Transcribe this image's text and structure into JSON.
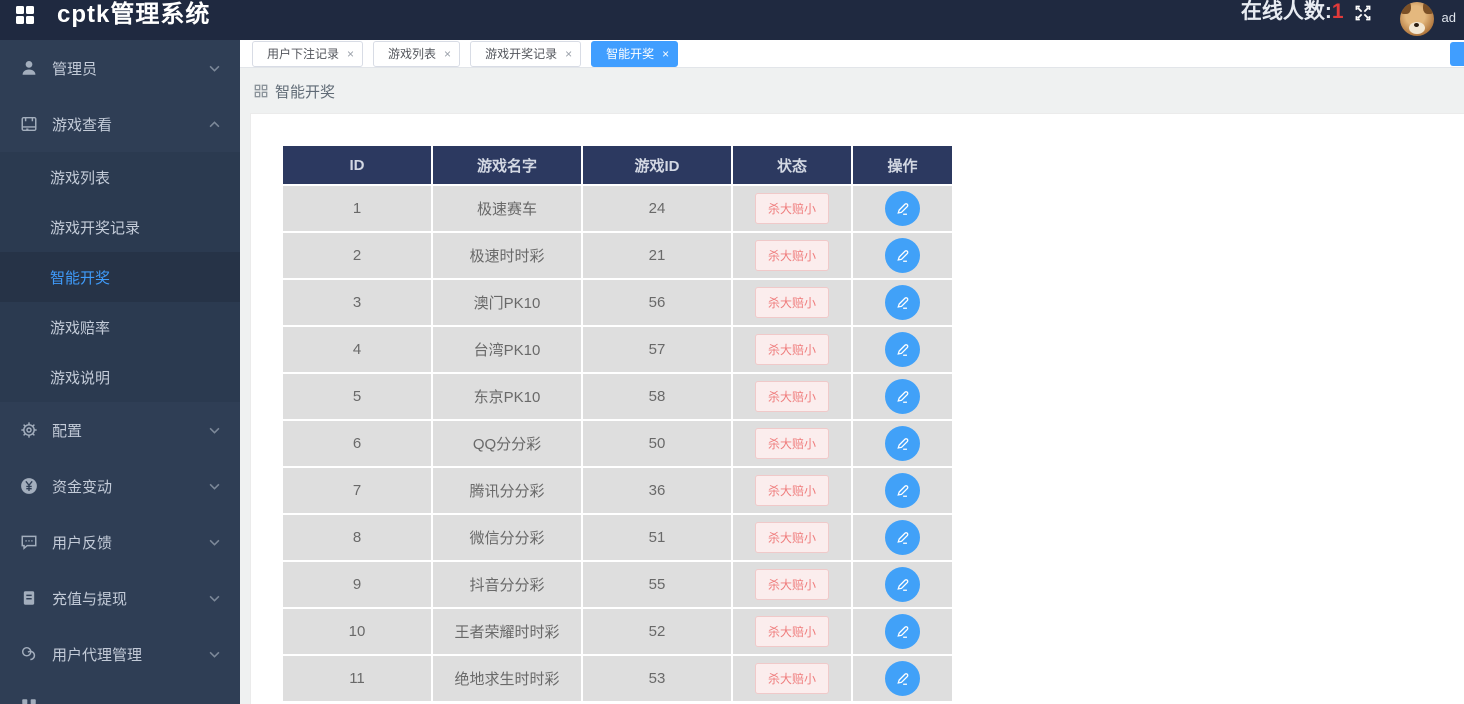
{
  "header": {
    "logo_text": "cptk管理系统",
    "online_label": "在线人数:",
    "online_count": "1",
    "username": "ad"
  },
  "ui": {
    "close_glyph": "×"
  },
  "tabs": [
    {
      "label": "用户下注记录",
      "active": false
    },
    {
      "label": "游戏列表",
      "active": false
    },
    {
      "label": "游戏开奖记录",
      "active": false
    },
    {
      "label": "智能开奖",
      "active": true
    }
  ],
  "breadcrumb": {
    "title": "智能开奖"
  },
  "sidebar": {
    "items": [
      {
        "label": "管理员",
        "icon": "user-icon",
        "state": "collapsed"
      },
      {
        "label": "游戏查看",
        "icon": "book-icon",
        "state": "expanded"
      },
      {
        "label": "配置",
        "icon": "gear-icon",
        "state": "collapsed"
      },
      {
        "label": "资金变动",
        "icon": "money-icon",
        "state": "collapsed"
      },
      {
        "label": "用户反馈",
        "icon": "feedback-icon",
        "state": "collapsed"
      },
      {
        "label": "充值与提现",
        "icon": "wallet-icon",
        "state": "collapsed"
      },
      {
        "label": "用户代理管理",
        "icon": "agent-icon",
        "state": "collapsed"
      }
    ],
    "game_submenu": [
      {
        "label": "游戏列表",
        "active": false
      },
      {
        "label": "游戏开奖记录",
        "active": false
      },
      {
        "label": "智能开奖",
        "active": true
      },
      {
        "label": "游戏赔率",
        "active": false
      },
      {
        "label": "游戏说明",
        "active": false
      }
    ]
  },
  "table": {
    "columns": [
      "ID",
      "游戏名字",
      "游戏ID",
      "状态",
      "操作"
    ],
    "rows": [
      {
        "id": "1",
        "name": "极速赛车",
        "game_id": "24",
        "status": "杀大赔小"
      },
      {
        "id": "2",
        "name": "极速时时彩",
        "game_id": "21",
        "status": "杀大赔小"
      },
      {
        "id": "3",
        "name": "澳门PK10",
        "game_id": "56",
        "status": "杀大赔小"
      },
      {
        "id": "4",
        "name": "台湾PK10",
        "game_id": "57",
        "status": "杀大赔小"
      },
      {
        "id": "5",
        "name": "东京PK10",
        "game_id": "58",
        "status": "杀大赔小"
      },
      {
        "id": "6",
        "name": "QQ分分彩",
        "game_id": "50",
        "status": "杀大赔小"
      },
      {
        "id": "7",
        "name": "腾讯分分彩",
        "game_id": "36",
        "status": "杀大赔小"
      },
      {
        "id": "8",
        "name": "微信分分彩",
        "game_id": "51",
        "status": "杀大赔小"
      },
      {
        "id": "9",
        "name": "抖音分分彩",
        "game_id": "55",
        "status": "杀大赔小"
      },
      {
        "id": "10",
        "name": "王者荣耀时时彩",
        "game_id": "52",
        "status": "杀大赔小"
      },
      {
        "id": "11",
        "name": "绝地求生时时彩",
        "game_id": "53",
        "status": "杀大赔小"
      }
    ]
  },
  "colors": {
    "header_bg": "#1f2940",
    "sidebar_bg": "#2f3e55",
    "accent_blue": "#409eff",
    "table_header_bg": "#2c3960",
    "row_bg": "#dedede",
    "status_red": "#ef7d7d",
    "online_count_red": "#e03a3a"
  }
}
